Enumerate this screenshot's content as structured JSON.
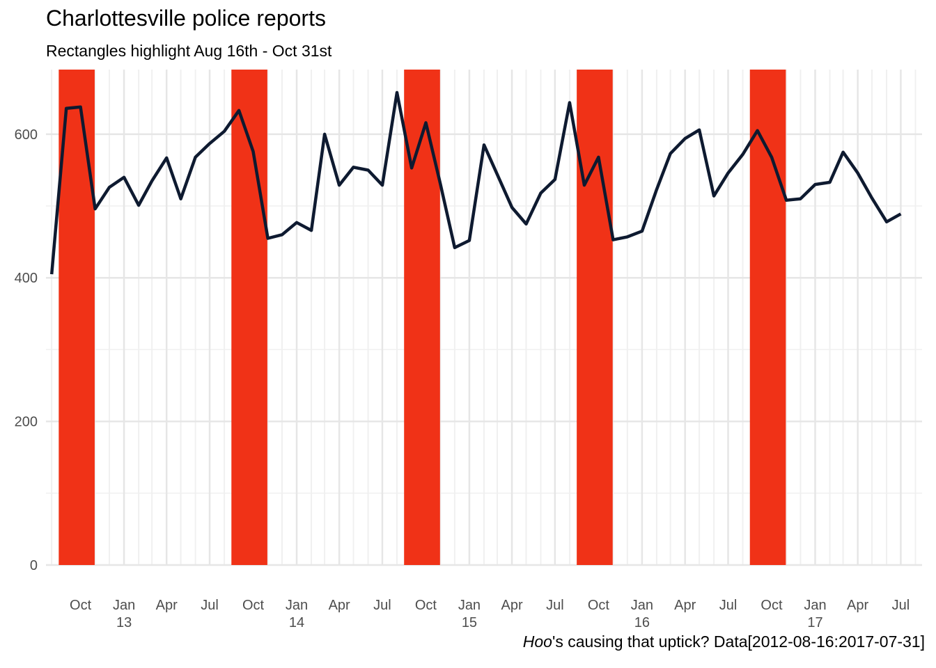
{
  "chart_data": {
    "type": "line",
    "title": "Charlottesville police reports",
    "subtitle": "Rectangles highlight Aug 16th - Oct 31st",
    "caption": {
      "italic": "Hoo",
      "rest": "'s causing that uptick? Data[2012-08-16:2017-07-31]"
    },
    "xlabel": "",
    "ylabel": "",
    "ylim": [
      0,
      690
    ],
    "yticks": [
      0,
      200,
      400,
      600
    ],
    "xlim": [
      "2012-07-20",
      "2017-08-15"
    ],
    "xticks": [
      {
        "date": "2012-10-01",
        "label": "Oct",
        "sub": ""
      },
      {
        "date": "2013-01-01",
        "label": "Jan",
        "sub": "13"
      },
      {
        "date": "2013-04-01",
        "label": "Apr",
        "sub": ""
      },
      {
        "date": "2013-07-01",
        "label": "Jul",
        "sub": ""
      },
      {
        "date": "2013-10-01",
        "label": "Oct",
        "sub": ""
      },
      {
        "date": "2014-01-01",
        "label": "Jan",
        "sub": "14"
      },
      {
        "date": "2014-04-01",
        "label": "Apr",
        "sub": ""
      },
      {
        "date": "2014-07-01",
        "label": "Jul",
        "sub": ""
      },
      {
        "date": "2014-10-01",
        "label": "Oct",
        "sub": ""
      },
      {
        "date": "2015-01-01",
        "label": "Jan",
        "sub": "15"
      },
      {
        "date": "2015-04-01",
        "label": "Apr",
        "sub": ""
      },
      {
        "date": "2015-07-01",
        "label": "Jul",
        "sub": ""
      },
      {
        "date": "2015-10-01",
        "label": "Oct",
        "sub": ""
      },
      {
        "date": "2016-01-01",
        "label": "Jan",
        "sub": "16"
      },
      {
        "date": "2016-04-01",
        "label": "Apr",
        "sub": ""
      },
      {
        "date": "2016-07-01",
        "label": "Jul",
        "sub": ""
      },
      {
        "date": "2016-10-01",
        "label": "Oct",
        "sub": ""
      },
      {
        "date": "2017-01-01",
        "label": "Jan",
        "sub": "17"
      },
      {
        "date": "2017-04-01",
        "label": "Apr",
        "sub": ""
      },
      {
        "date": "2017-07-01",
        "label": "Jul",
        "sub": ""
      }
    ],
    "highlight_ranges": [
      [
        "2012-08-16",
        "2012-10-31"
      ],
      [
        "2013-08-16",
        "2013-10-31"
      ],
      [
        "2014-08-16",
        "2014-10-31"
      ],
      [
        "2015-08-16",
        "2015-10-31"
      ],
      [
        "2016-08-16",
        "2016-10-31"
      ]
    ],
    "series": [
      {
        "x": [
          "2012-08-01",
          "2012-09-01",
          "2012-10-01",
          "2012-11-01",
          "2012-12-01",
          "2013-01-01",
          "2013-02-01",
          "2013-03-01",
          "2013-04-01",
          "2013-05-01",
          "2013-06-01",
          "2013-07-01",
          "2013-08-01",
          "2013-09-01",
          "2013-10-01",
          "2013-11-01",
          "2013-12-01",
          "2014-01-01",
          "2014-02-01",
          "2014-03-01",
          "2014-04-01",
          "2014-05-01",
          "2014-06-01",
          "2014-07-01",
          "2014-08-01",
          "2014-09-01",
          "2014-10-01",
          "2014-11-01",
          "2014-12-01",
          "2015-01-01",
          "2015-02-01",
          "2015-03-01",
          "2015-04-01",
          "2015-05-01",
          "2015-06-01",
          "2015-07-01",
          "2015-08-01",
          "2015-09-01",
          "2015-10-01",
          "2015-11-01",
          "2015-12-01",
          "2016-01-01",
          "2016-02-01",
          "2016-03-01",
          "2016-04-01",
          "2016-05-01",
          "2016-06-01",
          "2016-07-01",
          "2016-08-01",
          "2016-09-01",
          "2016-10-01",
          "2016-11-01",
          "2016-12-01",
          "2017-01-01",
          "2017-02-01",
          "2017-03-01",
          "2017-04-01",
          "2017-05-01",
          "2017-06-01",
          "2017-07-01"
        ],
        "values": [
          405,
          636,
          638,
          496,
          526,
          540,
          501,
          535,
          567,
          510,
          568,
          587,
          604,
          633,
          576,
          455,
          460,
          477,
          466,
          600,
          529,
          554,
          550,
          529,
          658,
          553,
          616,
          530,
          442,
          452,
          585,
          544,
          498,
          475,
          518,
          537,
          644,
          529,
          568,
          453,
          457,
          465,
          523,
          573,
          594,
          606,
          514,
          546,
          572,
          605,
          568,
          508,
          510,
          530,
          533,
          575,
          546,
          511,
          478,
          489
        ]
      }
    ],
    "colors": {
      "highlight": "#f03217",
      "line": "#0e1a30",
      "grid_major": "#e6e6e6",
      "grid_minor": "#f0f0f0",
      "tick_text": "#4d4d4d"
    }
  }
}
